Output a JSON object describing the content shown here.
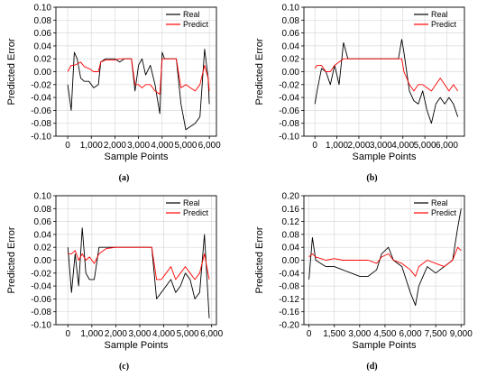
{
  "colors": {
    "real": "#000000",
    "predict": "#ff0000",
    "grid": "#d9d9d9"
  },
  "chart_data": [
    {
      "type": "line",
      "label": "(a)",
      "xlabel": "Sample Points",
      "ylabel": "Predicted Error",
      "xlim": [
        -500,
        6300
      ],
      "ylim": [
        -0.1,
        0.1
      ],
      "xticks": [
        0,
        1000,
        2000,
        3000,
        4000,
        5000,
        6000
      ],
      "xtick_labels": [
        "0",
        "1,000",
        "2,000",
        "3,000",
        "4,000",
        "5,000",
        "6,000"
      ],
      "yticks": [
        -0.1,
        -0.08,
        -0.06,
        -0.04,
        -0.02,
        0.0,
        0.02,
        0.04,
        0.06,
        0.08,
        0.1
      ],
      "ytick_labels": [
        "-0.10",
        "-0.08",
        "-0.06",
        "-0.04",
        "-0.02",
        "0.00",
        "0.02",
        "0.04",
        "0.06",
        "0.08",
        "0.10"
      ],
      "grid": true,
      "legend": "top-right",
      "series": [
        {
          "name": "Real",
          "color": "#000000",
          "x": [
            0,
            150,
            280,
            400,
            550,
            700,
            900,
            1100,
            1300,
            1400,
            1600,
            1800,
            2000,
            2200,
            2400,
            2700,
            2850,
            3000,
            3150,
            3300,
            3500,
            3700,
            3900,
            4000,
            4100,
            4400,
            4600,
            4800,
            5000,
            5200,
            5400,
            5600,
            5800,
            5950,
            6000
          ],
          "y": [
            -0.02,
            -0.06,
            0.03,
            0.02,
            -0.01,
            -0.015,
            -0.015,
            -0.025,
            -0.02,
            0.015,
            0.02,
            0.02,
            0.02,
            0.015,
            0.02,
            0.02,
            -0.03,
            0.01,
            0.02,
            -0.005,
            0.01,
            -0.02,
            -0.065,
            0.03,
            0.02,
            0.02,
            0.02,
            -0.05,
            -0.09,
            -0.085,
            -0.08,
            -0.07,
            0.035,
            -0.01,
            -0.05
          ]
        },
        {
          "name": "Predict",
          "color": "#ff0000",
          "x": [
            0,
            150,
            280,
            400,
            550,
            700,
            900,
            1100,
            1300,
            1400,
            1600,
            1800,
            2000,
            2200,
            2400,
            2700,
            2850,
            3000,
            3150,
            3300,
            3500,
            3700,
            3900,
            4000,
            4100,
            4400,
            4600,
            4800,
            5000,
            5200,
            5400,
            5600,
            5800,
            5950,
            6000
          ],
          "y": [
            0.0,
            0.01,
            0.01,
            0.012,
            0.015,
            0.008,
            0.005,
            0.0,
            0.0,
            0.015,
            0.018,
            0.018,
            0.018,
            0.02,
            0.02,
            0.02,
            -0.02,
            -0.02,
            -0.025,
            -0.02,
            -0.02,
            -0.03,
            -0.035,
            0.02,
            0.02,
            0.02,
            0.02,
            -0.025,
            -0.02,
            -0.025,
            -0.03,
            -0.02,
            0.01,
            -0.01,
            -0.03
          ]
        }
      ]
    },
    {
      "type": "line",
      "label": "(b)",
      "xlabel": "Sample Points",
      "ylabel": "Predicted Error",
      "xlim": [
        -500,
        6800
      ],
      "ylim": [
        -0.1,
        0.1
      ],
      "xticks": [
        0,
        1000,
        2000,
        3000,
        4000,
        5000,
        6000
      ],
      "xtick_labels": [
        "0",
        "1,000",
        "2,000",
        "3,000",
        "4,000",
        "5,000",
        "6,000"
      ],
      "yticks": [
        -0.1,
        -0.08,
        -0.06,
        -0.04,
        -0.02,
        0.0,
        0.02,
        0.04,
        0.06,
        0.08,
        0.1
      ],
      "ytick_labels": [
        "-0.10",
        "-0.08",
        "-0.06",
        "-0.04",
        "-0.02",
        "0.00",
        "0.02",
        "0.04",
        "0.06",
        "0.08",
        "0.10"
      ],
      "grid": true,
      "legend": "top-right",
      "series": [
        {
          "name": "Real",
          "color": "#000000",
          "x": [
            0,
            100,
            300,
            500,
            700,
            900,
            1100,
            1300,
            1500,
            2000,
            2500,
            3000,
            3500,
            3800,
            3950,
            4050,
            4300,
            4500,
            4700,
            4900,
            5100,
            5300,
            5500,
            5700,
            5900,
            6100,
            6300,
            6500
          ],
          "y": [
            -0.05,
            -0.03,
            0.005,
            0.0,
            -0.02,
            0.01,
            -0.02,
            0.045,
            0.02,
            0.02,
            0.02,
            0.02,
            0.02,
            0.02,
            0.05,
            0.03,
            -0.03,
            -0.045,
            -0.05,
            -0.03,
            -0.06,
            -0.08,
            -0.05,
            -0.04,
            -0.05,
            -0.04,
            -0.05,
            -0.07
          ]
        },
        {
          "name": "Predict",
          "color": "#ff0000",
          "x": [
            0,
            100,
            300,
            500,
            700,
            900,
            1100,
            1300,
            1500,
            2000,
            2500,
            3000,
            3500,
            3800,
            3950,
            4050,
            4300,
            4500,
            4700,
            4900,
            5100,
            5300,
            5500,
            5700,
            5900,
            6100,
            6300,
            6500
          ],
          "y": [
            0.005,
            0.01,
            0.01,
            0.0,
            0.0,
            0.01,
            0.015,
            0.02,
            0.02,
            0.02,
            0.02,
            0.02,
            0.02,
            0.02,
            0.02,
            0.0,
            -0.02,
            -0.03,
            -0.02,
            -0.02,
            -0.025,
            -0.03,
            -0.02,
            -0.01,
            -0.02,
            -0.03,
            -0.02,
            -0.03
          ]
        }
      ]
    },
    {
      "type": "line",
      "label": "(c)",
      "xlabel": "Sample Points",
      "ylabel": "Predicted Error",
      "xlim": [
        -500,
        6200
      ],
      "ylim": [
        -0.1,
        0.1
      ],
      "xticks": [
        0,
        1000,
        2000,
        3000,
        4000,
        5000,
        6000
      ],
      "xtick_labels": [
        "0",
        "1,000",
        "2,000",
        "3,000",
        "4,000",
        "5,000",
        "6,000"
      ],
      "yticks": [
        -0.1,
        -0.08,
        -0.06,
        -0.04,
        -0.02,
        0.0,
        0.02,
        0.04,
        0.06,
        0.08,
        0.1
      ],
      "ytick_labels": [
        "-0.10",
        "-0.08",
        "-0.06",
        "-0.04",
        "-0.02",
        "0.00",
        "0.02",
        "0.04",
        "0.06",
        "0.08",
        "0.10"
      ],
      "grid": true,
      "legend": "top-right",
      "series": [
        {
          "name": "Real",
          "color": "#000000",
          "x": [
            0,
            150,
            300,
            450,
            600,
            750,
            900,
            1100,
            1300,
            1600,
            2000,
            2500,
            3000,
            3500,
            3700,
            3900,
            4100,
            4300,
            4500,
            4700,
            4900,
            5100,
            5300,
            5500,
            5700,
            5900
          ],
          "y": [
            0.02,
            -0.05,
            0.01,
            -0.04,
            0.05,
            -0.02,
            -0.03,
            -0.03,
            0.02,
            0.02,
            0.02,
            0.02,
            0.02,
            0.02,
            -0.06,
            -0.05,
            -0.04,
            -0.03,
            -0.05,
            -0.04,
            -0.02,
            -0.03,
            -0.06,
            -0.05,
            0.04,
            -0.09
          ]
        },
        {
          "name": "Predict",
          "color": "#ff0000",
          "x": [
            0,
            150,
            300,
            450,
            600,
            750,
            900,
            1100,
            1300,
            1600,
            2000,
            2500,
            3000,
            3500,
            3700,
            3900,
            4100,
            4300,
            4500,
            4700,
            4900,
            5100,
            5300,
            5500,
            5700,
            5900
          ],
          "y": [
            0.01,
            0.01,
            0.015,
            0.0,
            0.01,
            0.0,
            0.005,
            -0.005,
            0.01,
            0.018,
            0.02,
            0.02,
            0.02,
            0.02,
            -0.03,
            -0.03,
            -0.02,
            -0.01,
            -0.03,
            -0.02,
            -0.01,
            -0.02,
            -0.03,
            -0.02,
            0.01,
            -0.03
          ]
        }
      ]
    },
    {
      "type": "line",
      "label": "(d)",
      "xlabel": "Sample Points",
      "ylabel": "Predicted Error",
      "xlim": [
        -300,
        9200
      ],
      "ylim": [
        -0.2,
        0.2
      ],
      "xticks": [
        0,
        1500,
        3000,
        4500,
        6000,
        7500,
        9000
      ],
      "xtick_labels": [
        "0",
        "1,500",
        "3,000",
        "4,500",
        "6,000",
        "7,500",
        "9,000"
      ],
      "yticks": [
        -0.2,
        -0.16,
        -0.12,
        -0.08,
        -0.04,
        0.0,
        0.04,
        0.08,
        0.12,
        0.16,
        0.2
      ],
      "ytick_labels": [
        "-0.20",
        "-0.16",
        "-0.12",
        "-0.08",
        "-0.04",
        "0.00",
        "0.04",
        "0.08",
        "0.12",
        "0.16",
        "0.20"
      ],
      "grid": true,
      "legend": "top-right",
      "series": [
        {
          "name": "Real",
          "color": "#000000",
          "x": [
            0,
            200,
            400,
            700,
            1000,
            1500,
            2000,
            2500,
            3000,
            3500,
            4000,
            4300,
            4700,
            5000,
            5500,
            6000,
            6300,
            6500,
            7000,
            7500,
            8000,
            8500,
            8800,
            9000
          ],
          "y": [
            -0.06,
            0.07,
            0.0,
            -0.01,
            -0.02,
            -0.02,
            -0.03,
            -0.04,
            -0.05,
            -0.05,
            -0.03,
            0.02,
            0.04,
            0.0,
            -0.02,
            -0.1,
            -0.14,
            -0.08,
            -0.02,
            -0.04,
            -0.02,
            0.0,
            0.1,
            0.16
          ]
        },
        {
          "name": "Predict",
          "color": "#ff0000",
          "x": [
            0,
            200,
            400,
            700,
            1000,
            1500,
            2000,
            2500,
            3000,
            3500,
            4000,
            4300,
            4700,
            5000,
            5500,
            6000,
            6300,
            6500,
            7000,
            7500,
            8000,
            8500,
            8800,
            9000
          ],
          "y": [
            0.01,
            0.02,
            0.01,
            0.005,
            0.0,
            0.005,
            0.0,
            0.0,
            0.0,
            0.0,
            -0.01,
            0.01,
            0.02,
            0.0,
            -0.01,
            -0.03,
            -0.05,
            -0.02,
            0.0,
            -0.01,
            -0.02,
            0.0,
            0.04,
            0.03
          ]
        }
      ]
    }
  ]
}
